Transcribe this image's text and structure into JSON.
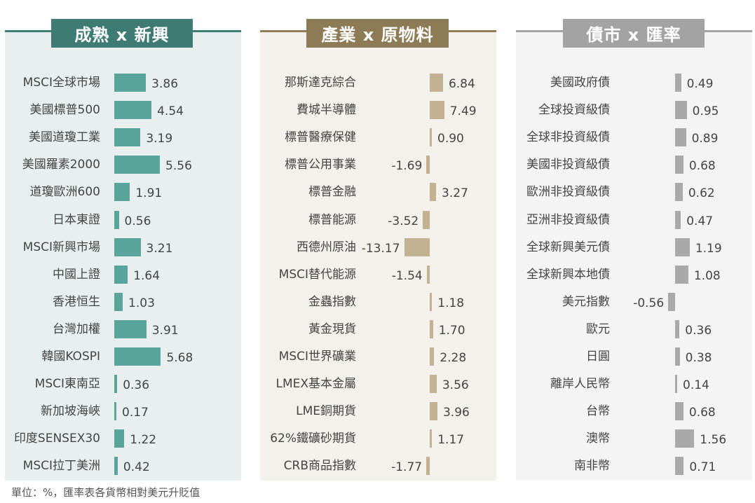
{
  "footnote": "單位：%，匯率表各貨幣相對美元升貶值",
  "colors": {
    "mature": {
      "bg": "#e8efee",
      "accent": "#3d7b73",
      "bar": "#5aa59b"
    },
    "sector": {
      "bg": "#f4f1ec",
      "accent": "#8d7b55",
      "bar": "#c3b291"
    },
    "bond": {
      "bg": "#f4f4f4",
      "accent": "#a3a3a3",
      "bar": "#a9a9a9"
    }
  },
  "chart_data": [
    {
      "type": "bar",
      "title": "成熟 x 新興",
      "categories": [
        "MSCI全球市場",
        "美國標普500",
        "美國道瓊工業",
        "美國羅素2000",
        "道瓊歐洲600",
        "日本東證",
        "MSCI新興市場",
        "中國上證",
        "香港恒生",
        "台灣加權",
        "韓國KOSPI",
        "MSCI東南亞",
        "新加坡海峽",
        "印度SENSEX30",
        "MSCI拉丁美洲"
      ],
      "values": [
        3.86,
        4.54,
        3.19,
        5.56,
        1.91,
        0.56,
        3.21,
        1.64,
        1.03,
        3.91,
        5.68,
        0.36,
        0.17,
        1.22,
        0.42
      ],
      "labels": [
        "3.86",
        "4.54",
        "3.19",
        "5.56",
        "1.91",
        "0.56",
        "3.21",
        "1.64",
        "1.03",
        "3.91",
        "5.68",
        "0.36",
        "0.17",
        "1.22",
        "0.42"
      ],
      "orientation": "horizontal"
    },
    {
      "type": "bar",
      "title": "產業 x 原物料",
      "categories": [
        "那斯達克綜合",
        "費城半導體",
        "標普醫療保健",
        "標普公用事業",
        "標普金融",
        "標普能源",
        "西德州原油",
        "MSCI替代能源",
        "金蟲指數",
        "黃金現貨",
        "MSCI世界礦業",
        "LMEX基本金屬",
        "LME銅期貨",
        "62%鐵礦砂期貨",
        "CRB商品指數"
      ],
      "values": [
        6.84,
        7.49,
        0.9,
        -1.69,
        3.27,
        -3.52,
        -13.17,
        -1.54,
        1.18,
        1.7,
        2.28,
        3.56,
        3.96,
        1.17,
        -1.77
      ],
      "labels": [
        "6.84",
        "7.49",
        "0.90",
        "-1.69",
        "3.27",
        "-3.52",
        "-13.17",
        "-1.54",
        "1.18",
        "1.70",
        "2.28",
        "3.56",
        "3.96",
        "1.17",
        "-1.77"
      ],
      "orientation": "horizontal"
    },
    {
      "type": "bar",
      "title": "債市 x 匯率",
      "categories": [
        "美國政府債",
        "全球投資級債",
        "全球非投資級債",
        "美國非投資級債",
        "歐洲非投資級債",
        "亞洲非投資級債",
        "全球新興美元債",
        "全球新興本地債",
        "美元指數",
        "歐元",
        "日圓",
        "離岸人民幣",
        "台幣",
        "澳幣",
        "南非幣"
      ],
      "values": [
        0.49,
        0.95,
        0.89,
        0.68,
        0.62,
        0.47,
        1.19,
        1.08,
        -0.56,
        0.36,
        0.38,
        0.14,
        0.68,
        1.56,
        0.71
      ],
      "labels": [
        "0.49",
        "0.95",
        "0.89",
        "0.68",
        "0.62",
        "0.47",
        "1.19",
        "1.08",
        "-0.56",
        "0.36",
        "0.38",
        "0.14",
        "0.68",
        "1.56",
        "0.71"
      ],
      "orientation": "horizontal"
    }
  ]
}
